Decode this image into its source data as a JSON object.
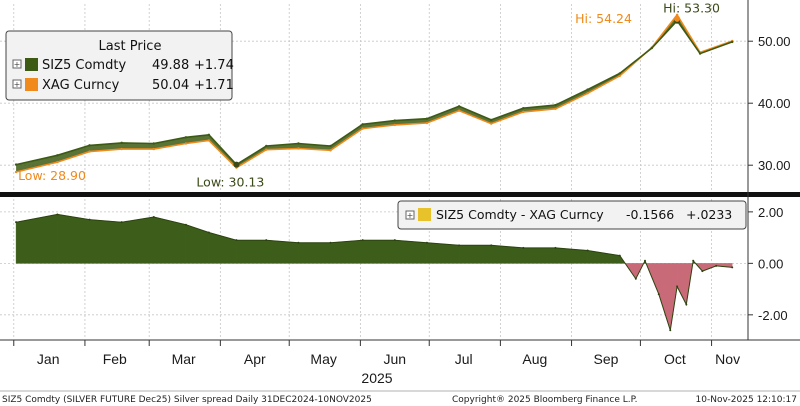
{
  "colors": {
    "sizu": "#3d5a14",
    "xag": "#f08a1c",
    "spread_pos": "#3d5e1a",
    "spread_neg": "#c96a78",
    "spread_legend": "#e8c22a",
    "grid": "#c6c6c6",
    "hi_lo_label": "#3a4a18"
  },
  "chart_data": [
    {
      "type": "line",
      "title": "",
      "legend": {
        "title": "Last Price",
        "placement": "top-left",
        "entries": [
          {
            "name": "SIZ5 Comdty",
            "last": "49.88",
            "change": "+1.74",
            "color": "#3d5a14"
          },
          {
            "name": "XAG Curncy",
            "last": "50.04",
            "change": "+1.71",
            "color": "#f08a1c"
          }
        ]
      },
      "x": [
        "2025-01-02",
        "2025-01-20",
        "2025-02-03",
        "2025-02-17",
        "2025-03-03",
        "2025-03-17",
        "2025-03-27",
        "2025-04-08",
        "2025-04-21",
        "2025-05-05",
        "2025-05-19",
        "2025-06-02",
        "2025-06-16",
        "2025-06-30",
        "2025-07-14",
        "2025-07-28",
        "2025-08-11",
        "2025-08-25",
        "2025-09-08",
        "2025-09-22",
        "2025-10-06",
        "2025-10-17",
        "2025-10-27",
        "2025-11-10"
      ],
      "series": [
        {
          "name": "SIZ5 Comdty",
          "values": [
            30.1,
            31.6,
            33.2,
            33.6,
            33.5,
            34.5,
            34.9,
            30.1,
            33.1,
            33.5,
            33.1,
            36.6,
            37.2,
            37.5,
            39.5,
            37.3,
            39.2,
            39.7,
            42.2,
            44.8,
            48.9,
            53.3,
            48.0,
            49.88
          ]
        },
        {
          "name": "XAG Curncy",
          "values": [
            28.9,
            30.5,
            32.2,
            32.6,
            32.6,
            33.5,
            34.0,
            29.6,
            32.5,
            32.7,
            32.4,
            35.9,
            36.5,
            36.8,
            38.8,
            36.7,
            38.6,
            39.1,
            41.6,
            44.4,
            49.0,
            54.24,
            48.2,
            50.04
          ]
        }
      ],
      "annotations": [
        {
          "text": "Hi: 53.30",
          "series": "SIZ5 Comdty"
        },
        {
          "text": "Hi: 54.24",
          "series": "XAG Curncy"
        },
        {
          "text": "Low: 30.13",
          "series": "SIZ5 Comdty"
        },
        {
          "text": "Low: 28.90",
          "series": "XAG Curncy"
        }
      ],
      "yticks": [
        "30.00",
        "40.00",
        "50.00"
      ],
      "ylim": [
        26,
        56
      ],
      "grid": true
    },
    {
      "type": "area",
      "title": "",
      "legend": {
        "placement": "top-right",
        "entries": [
          {
            "name": "SIZ5 Comdty - XAG Curncy",
            "last": "-0.1566",
            "change": "+.0233",
            "color": "#e8c22a"
          }
        ]
      },
      "x": [
        "2025-01-02",
        "2025-01-20",
        "2025-02-03",
        "2025-02-17",
        "2025-03-03",
        "2025-03-17",
        "2025-03-27",
        "2025-04-08",
        "2025-04-21",
        "2025-05-05",
        "2025-05-19",
        "2025-06-02",
        "2025-06-16",
        "2025-06-30",
        "2025-07-14",
        "2025-07-28",
        "2025-08-11",
        "2025-08-25",
        "2025-09-08",
        "2025-09-22",
        "2025-09-29",
        "2025-10-03",
        "2025-10-09",
        "2025-10-14",
        "2025-10-17",
        "2025-10-21",
        "2025-10-24",
        "2025-10-28",
        "2025-11-03",
        "2025-11-10"
      ],
      "series": [
        {
          "name": "SIZ5 Comdty - XAG Curncy",
          "values": [
            1.6,
            1.9,
            1.7,
            1.6,
            1.8,
            1.5,
            1.2,
            0.9,
            0.9,
            0.8,
            0.8,
            0.9,
            0.9,
            0.8,
            0.7,
            0.7,
            0.6,
            0.6,
            0.5,
            0.3,
            -0.6,
            0.1,
            -1.2,
            -2.6,
            -0.9,
            -1.6,
            0.1,
            -0.3,
            -0.1,
            -0.1566
          ]
        }
      ],
      "yticks": [
        "-2.00",
        "0.00",
        "2.00"
      ],
      "ylim": [
        -2.9,
        2.5
      ],
      "grid": true
    }
  ],
  "x_axis": {
    "tick_labels": [
      "Jan",
      "Feb",
      "Mar",
      "Apr",
      "May",
      "Jun",
      "Jul",
      "Aug",
      "Sep",
      "Oct",
      "Nov"
    ],
    "year_label": "2025"
  },
  "footer": {
    "left": "SIZ5 Comdty (SILVER FUTURE   Dec25) Silver spread Daily 31DEC2024-10NOV2025",
    "center": "Copyright® 2025 Bloomberg Finance L.P.",
    "right": "10-Nov-2025 12:10:17"
  }
}
